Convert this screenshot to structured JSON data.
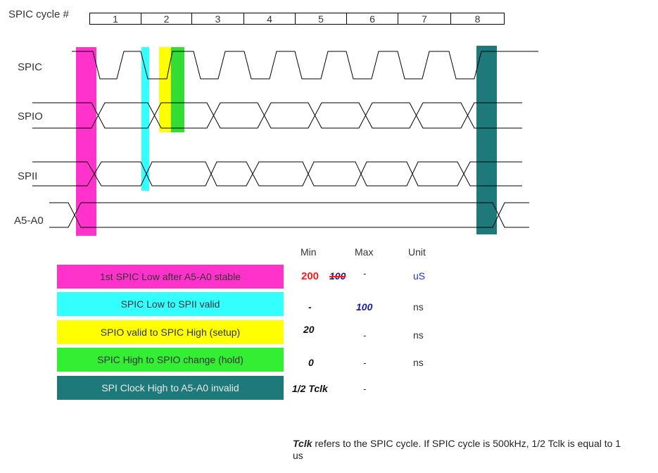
{
  "header": {
    "cycle_label": "SPIC cycle #",
    "cycles": [
      "1",
      "2",
      "3",
      "4",
      "5",
      "6",
      "7",
      "8"
    ]
  },
  "signals": [
    "SPIC",
    "SPIO",
    "SPII",
    "A5-A0"
  ],
  "colors": {
    "magenta": "#ff33cc",
    "cyan": "#33ffff",
    "yellow": "#ffff00",
    "green": "#33dd33",
    "teal": "#1e7a7a"
  },
  "table": {
    "headers": {
      "min": "Min",
      "max": "Max",
      "unit": "Unit"
    },
    "rows": [
      {
        "label": "1st SPIC Low after A5-A0 stable",
        "color": "#ff33cc",
        "min": "200",
        "min_struck": "100",
        "max": "-",
        "unit": "uS"
      },
      {
        "label": "SPIC Low  to SPII valid",
        "color": "#33ffff",
        "min": "-",
        "max": "100",
        "unit": "ns"
      },
      {
        "label": "SPIO valid to SPIC High (setup)",
        "color": "#ffff00",
        "min": "20",
        "max": "-",
        "unit": "ns"
      },
      {
        "label": "SPIC High to SPIO change (hold)",
        "color": "#33ee33",
        "min": "0",
        "max": "-",
        "unit": "ns"
      },
      {
        "label": "SPI Clock High to A5-A0 invalid",
        "color": "#1e7a7a",
        "min": "1/2 Tclk",
        "max": "-",
        "unit": ""
      }
    ]
  },
  "note": {
    "term": "Tclk",
    "text": " refers to the SPIC cycle. If SPIC cycle is 500kHz, 1/2 Tclk is equal to 1 us"
  }
}
